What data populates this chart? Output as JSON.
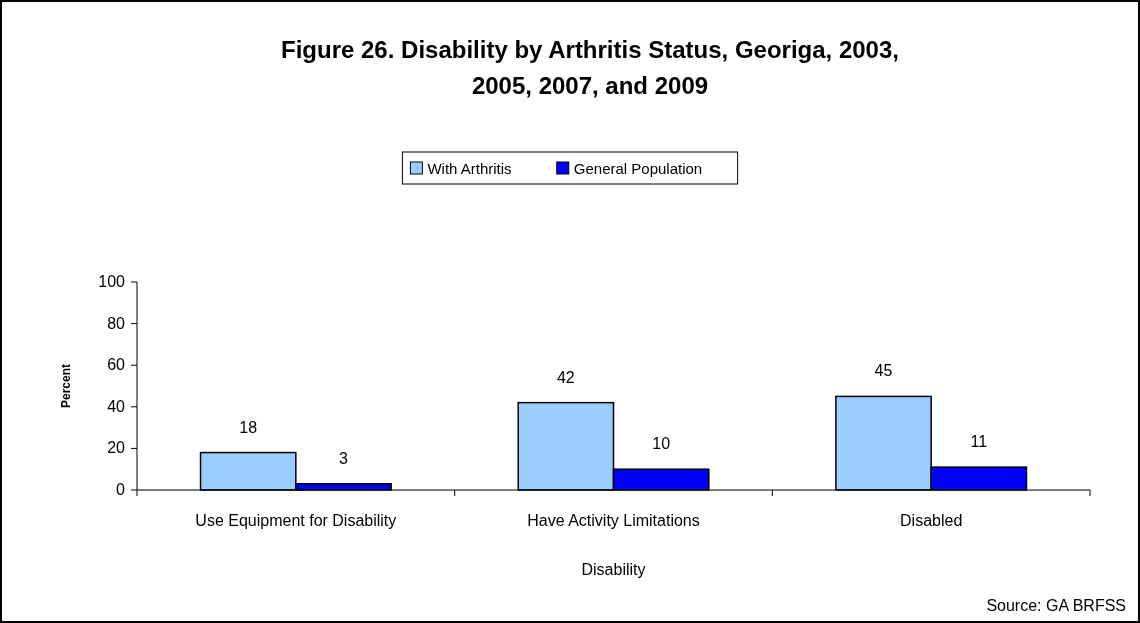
{
  "chart_data": {
    "type": "bar",
    "title": "Figure 26. Disability by Arthritis Status, Georiga, 2003, 2005, 2007, and 2009",
    "xlabel": "Disability",
    "ylabel": "Percent",
    "categories": [
      "Use Equipment for Disability",
      "Have Activity Limitations",
      "Disabled"
    ],
    "series": [
      {
        "name": "With Arthritis",
        "color": "#99ccff",
        "values": [
          18,
          42,
          45
        ]
      },
      {
        "name": "General Population",
        "color": "#0000ff",
        "values": [
          3,
          10,
          11
        ]
      }
    ],
    "ylim": [
      0,
      100
    ],
    "yticks": [
      0,
      20,
      40,
      60,
      80,
      100
    ],
    "grid": false,
    "legend": "top",
    "data_labels": true,
    "annotations": [
      "Source: GA BRFSS"
    ]
  }
}
